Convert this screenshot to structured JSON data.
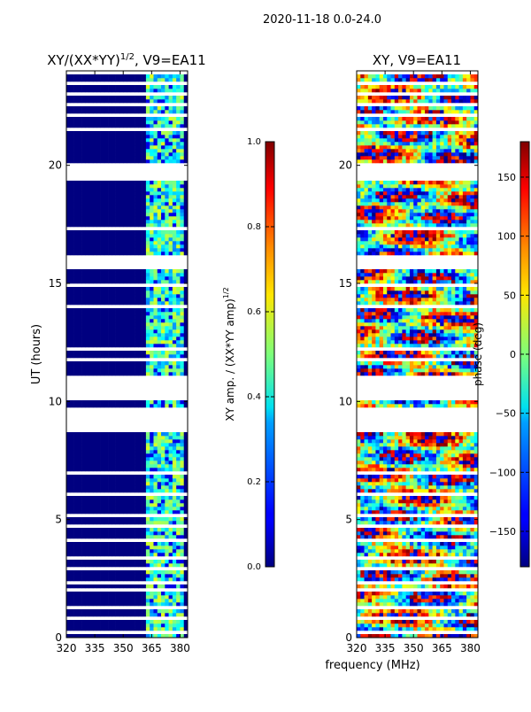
{
  "chart_data": [
    {
      "type": "heatmap",
      "suptitle": "2020-11-18 0.0-24.0",
      "title": "XY/(XX*YY)",
      "title_exp": "1/2",
      "title_suffix": ", V9=EA11",
      "xlabel": "frequency (MHz)",
      "ylabel": "UT (hours)",
      "xlim": [
        320,
        384
      ],
      "ylim": [
        0,
        24
      ],
      "xticks": [
        320,
        335,
        350,
        365,
        380
      ],
      "yticks": [
        0,
        5,
        10,
        15,
        20
      ],
      "colorbar": {
        "label": "XY amp. / (XX*YY amp)",
        "label_exp": "1/2",
        "range": [
          0.0,
          1.0
        ],
        "ticks": [
          "0.0",
          "0.2",
          "0.4",
          "0.6",
          "0.8",
          "1.0"
        ],
        "colormap": "jet"
      }
    },
    {
      "type": "heatmap",
      "title": "XY, V9=EA11",
      "xlim": [
        320,
        384
      ],
      "ylim": [
        0,
        24
      ],
      "xticks": [
        320,
        335,
        350,
        365,
        380
      ],
      "yticks": [
        0,
        5,
        10,
        15,
        20
      ],
      "colorbar": {
        "label": "phase (deg)",
        "range": [
          -180,
          180
        ],
        "ticks": [
          "150",
          "100",
          "50",
          "0",
          "−50",
          "−100",
          "−150"
        ],
        "tick_values": [
          150,
          100,
          50,
          0,
          -50,
          -100,
          -150
        ],
        "colormap": "jet"
      }
    }
  ],
  "flagged_ut_intervals_hours": [
    [
      0.2,
      0.35
    ],
    [
      0.7,
      0.85
    ],
    [
      1.2,
      1.3
    ],
    [
      1.9,
      2.05
    ],
    [
      2.3,
      2.45
    ],
    [
      2.8,
      2.95
    ],
    [
      3.3,
      3.45
    ],
    [
      4.05,
      4.15
    ],
    [
      4.7,
      4.8
    ],
    [
      5.15,
      5.25
    ],
    [
      6.05,
      6.2
    ],
    [
      6.9,
      7.0
    ],
    [
      7.6,
      7.7
    ],
    [
      8.35,
      8.45
    ],
    [
      8.7,
      9.8
    ],
    [
      10.1,
      11.1
    ],
    [
      11.65,
      11.85
    ],
    [
      12.1,
      12.25
    ],
    [
      13.0,
      13.1
    ],
    [
      14.0,
      14.1
    ],
    [
      14.8,
      14.95
    ],
    [
      15.65,
      16.15
    ],
    [
      17.3,
      17.4
    ],
    [
      18.4,
      18.5
    ],
    [
      19.35,
      19.45
    ],
    [
      19.5,
      20.05
    ],
    [
      20.95,
      21.05
    ],
    [
      21.4,
      21.55
    ],
    [
      22.05,
      22.2
    ],
    [
      22.55,
      22.7
    ],
    [
      23.0,
      23.05
    ],
    [
      23.35,
      23.5
    ],
    [
      23.85,
      24.0
    ]
  ],
  "rfi_freq_band_mhz": [
    361.5,
    382
  ]
}
